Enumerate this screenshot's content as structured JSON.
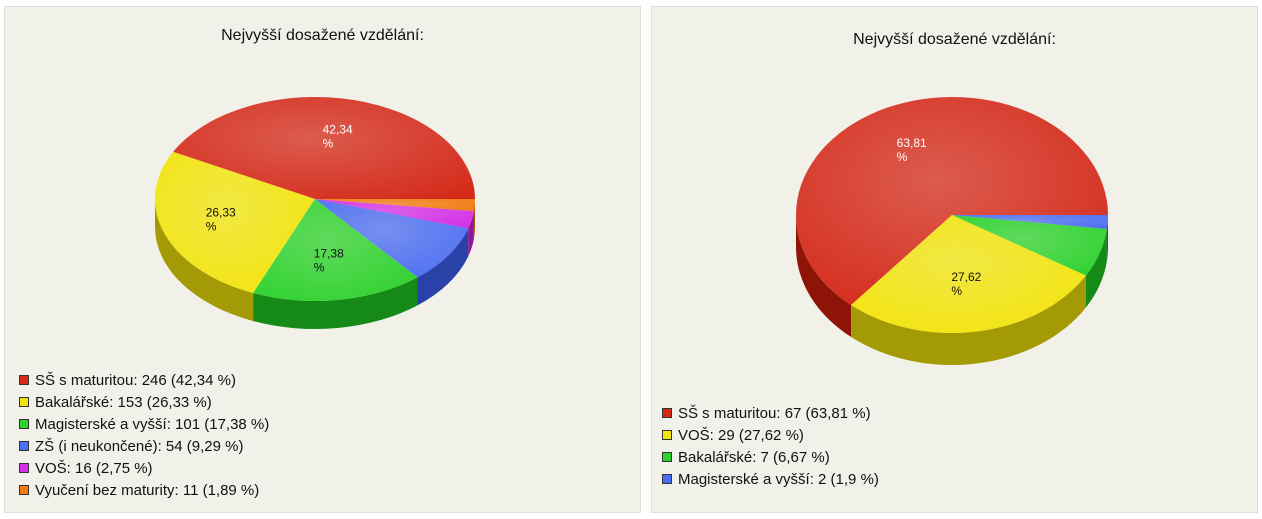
{
  "chart_data": [
    {
      "type": "pie",
      "title": "Nejvyšší dosažené vzdělání:",
      "slices": [
        {
          "label": "SŠ s maturitou",
          "count": 246,
          "value": 42.34,
          "display": "42,34",
          "legend": "SŠ s maturitou: 246 (42,34 %)",
          "color": "#d42a1a",
          "dark": "#8e1408"
        },
        {
          "label": "Bakalářské",
          "count": 153,
          "value": 26.33,
          "display": "26,33",
          "legend": "Bakalářské: 153 (26,33 %)",
          "color": "#f2e40c",
          "dark": "#a39a06"
        },
        {
          "label": "Magisterské a vyšší",
          "count": 101,
          "value": 17.38,
          "display": "17,38",
          "legend": "Magisterské a vyšší: 101 (17,38 %)",
          "color": "#2ed22e",
          "dark": "#168a16"
        },
        {
          "label": "ZŠ (i neukončené)",
          "count": 54,
          "value": 9.29,
          "display": "",
          "legend": "ZŠ (i neukončené): 54 (9,29 %)",
          "color": "#4d6ef2",
          "dark": "#2a42a8"
        },
        {
          "label": "VOŠ",
          "count": 16,
          "value": 2.75,
          "display": "",
          "legend": "VOŠ: 16 (2,75 %)",
          "color": "#d42ee8",
          "dark": "#8c169c"
        },
        {
          "label": "Vyučení bez maturity",
          "count": 11,
          "value": 1.89,
          "display": "",
          "legend": "Vyučení bez maturity: 11 (1,89 %)",
          "color": "#f27a10",
          "dark": "#a84e06"
        }
      ],
      "percent_sign": "%",
      "legend_position": "bottom-left"
    },
    {
      "type": "pie",
      "title": "Nejvyšší dosažené vzdělání:",
      "slices": [
        {
          "label": "SŠ s maturitou",
          "count": 67,
          "value": 63.81,
          "display": "63,81",
          "legend": "SŠ s maturitou: 67 (63,81 %)",
          "color": "#d42a1a",
          "dark": "#8e1408"
        },
        {
          "label": "VOŠ",
          "count": 29,
          "value": 27.62,
          "display": "27,62",
          "legend": "VOŠ: 29 (27,62 %)",
          "color": "#f2e40c",
          "dark": "#a39a06"
        },
        {
          "label": "Bakalářské",
          "count": 7,
          "value": 6.67,
          "display": "",
          "legend": "Bakalářské: 7 (6,67 %)",
          "color": "#2ed22e",
          "dark": "#168a16"
        },
        {
          "label": "Magisterské a vyšší",
          "count": 2,
          "value": 1.9,
          "display": "",
          "legend": "Magisterské a vyšší: 2 (1,9 %)",
          "color": "#4d6ef2",
          "dark": "#2a42a8"
        }
      ],
      "percent_sign": "%",
      "legend_position": "bottom-left"
    }
  ]
}
